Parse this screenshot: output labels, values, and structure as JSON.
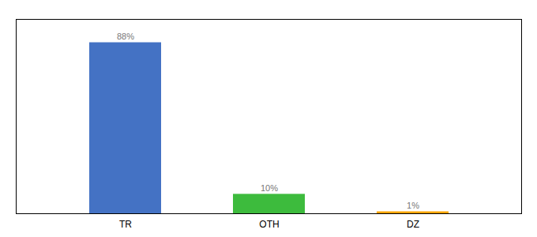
{
  "chart_data": {
    "type": "bar",
    "categories": [
      "TR",
      "OTH",
      "DZ"
    ],
    "values": [
      88,
      10,
      1
    ],
    "value_labels": [
      "88%",
      "10%",
      "1%"
    ],
    "colors": [
      "#4472C4",
      "#3DBB3D",
      "#FFA500"
    ],
    "ylim": [
      0,
      100
    ],
    "grid": false,
    "data_labels": true,
    "tick_labels": "x"
  }
}
